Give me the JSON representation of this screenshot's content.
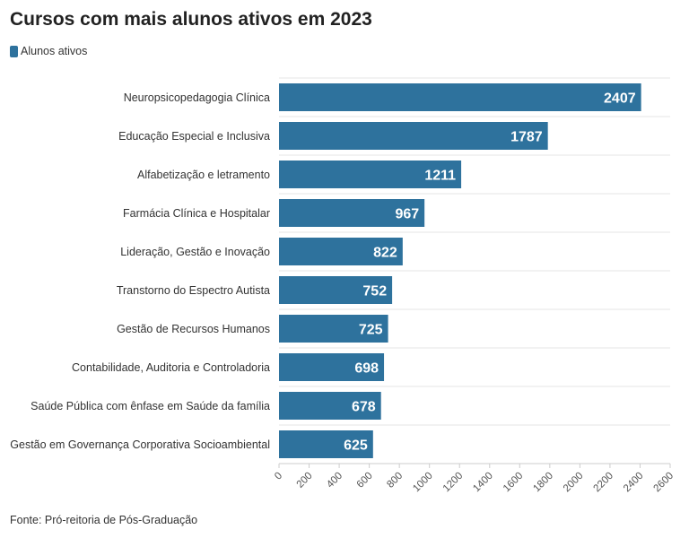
{
  "title": "Cursos com mais alunos ativos em 2023",
  "source": "Fonte: Pró-reitoria de Pós-Graduação",
  "colors": {
    "bar": "#2e729d",
    "grid": "#e6e6e6",
    "axis_text": "#555555",
    "label_text": "#333333",
    "value_text": "#ffffff"
  },
  "chart_data": {
    "type": "bar",
    "orientation": "horizontal",
    "title": "Cursos com mais alunos ativos em 2023",
    "legend_position": "top-left",
    "categories": [
      "Neuropsicopedagogia Clínica",
      "Educação Especial e Inclusiva",
      "Alfabetização e letramento",
      "Farmácia Clínica e Hospitalar",
      "Lideração, Gestão e Inovação",
      "Transtorno do Espectro Autista",
      "Gestão de Recursos Humanos",
      "Contabilidade, Auditoria e Controladoria",
      "Saúde Pública com ênfase em Saúde da família",
      "Gestão em Governança Corporativa Socioambiental"
    ],
    "series": [
      {
        "name": "Alunos ativos",
        "values": [
          2407,
          1787,
          1211,
          967,
          822,
          752,
          725,
          698,
          678,
          625
        ]
      }
    ],
    "xlim": [
      0,
      2600
    ],
    "xticks": [
      0,
      200,
      400,
      600,
      800,
      1000,
      1200,
      1400,
      1600,
      1800,
      2000,
      2200,
      2400,
      2600
    ],
    "grid": true
  }
}
